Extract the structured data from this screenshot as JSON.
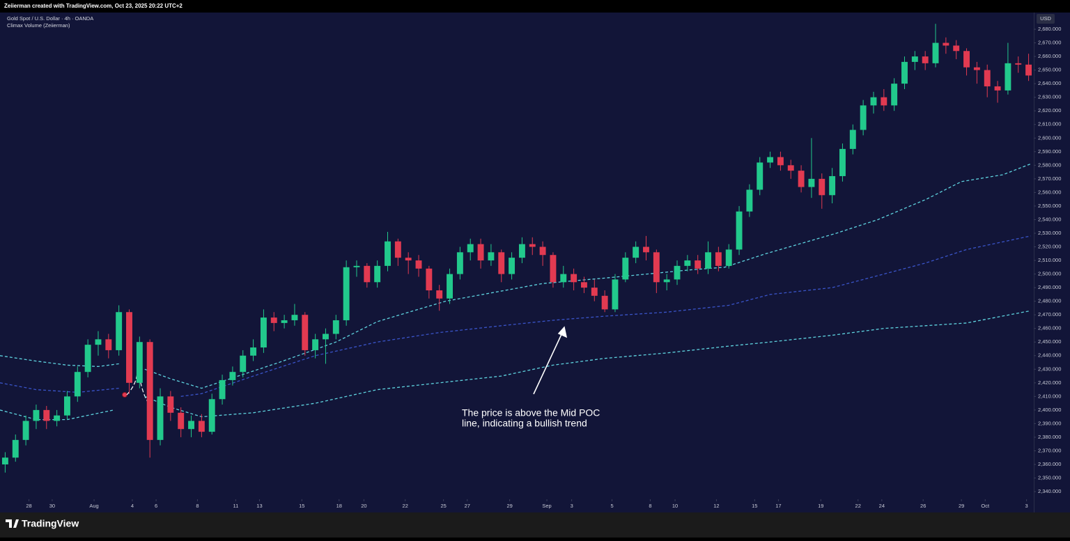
{
  "credit": "Zeiierman created with TradingView.com, Oct 23, 2025 20:22 UTC+2",
  "footer_brand": "TradingView",
  "chart_data": {
    "type": "candlestick",
    "title": "Gold Spot / U.S. Dollar · 4h · OANDA",
    "subtitle": "Climax Volume (Zeiierman)",
    "currency": "USD",
    "annotation": [
      "The price is above the Mid POC",
      "line, indicating a bullish trend"
    ],
    "up_color": "#22c98c",
    "down_color": "#e23a51",
    "grid": false,
    "xlim": [
      -0.5,
      99.5
    ],
    "ylim": [
      2334.4,
      2692.3
    ],
    "xticks": [
      {
        "value": 2.3,
        "label": "28"
      },
      {
        "value": 4.55,
        "label": "30"
      },
      {
        "value": 8.6,
        "label": "Aug"
      },
      {
        "value": 12.3,
        "label": "4"
      },
      {
        "value": 14.6,
        "label": "6"
      },
      {
        "value": 18.6,
        "label": "8"
      },
      {
        "value": 22.3,
        "label": "11"
      },
      {
        "value": 24.6,
        "label": "13"
      },
      {
        "value": 28.7,
        "label": "15"
      },
      {
        "value": 32.3,
        "label": "18"
      },
      {
        "value": 34.7,
        "label": "20"
      },
      {
        "value": 38.7,
        "label": "22"
      },
      {
        "value": 42.4,
        "label": "25"
      },
      {
        "value": 44.7,
        "label": "27"
      },
      {
        "value": 48.8,
        "label": "29"
      },
      {
        "value": 52.4,
        "label": "Sep"
      },
      {
        "value": 54.8,
        "label": "3"
      },
      {
        "value": 58.7,
        "label": "5"
      },
      {
        "value": 62.4,
        "label": "8"
      },
      {
        "value": 64.8,
        "label": "10"
      },
      {
        "value": 68.8,
        "label": "12"
      },
      {
        "value": 72.5,
        "label": "15"
      },
      {
        "value": 74.8,
        "label": "17"
      },
      {
        "value": 78.9,
        "label": "19"
      },
      {
        "value": 82.5,
        "label": "22"
      },
      {
        "value": 84.8,
        "label": "24"
      },
      {
        "value": 88.8,
        "label": "26"
      },
      {
        "value": 92.5,
        "label": "29"
      },
      {
        "value": 94.8,
        "label": "Oct"
      },
      {
        "value": 98.8,
        "label": "3"
      }
    ],
    "yticks": [
      {
        "value": 2340,
        "label": "2,340.000"
      },
      {
        "value": 2350,
        "label": "2,350.000"
      },
      {
        "value": 2360,
        "label": "2,360.000"
      },
      {
        "value": 2370,
        "label": "2,370.000"
      },
      {
        "value": 2380,
        "label": "2,380.000"
      },
      {
        "value": 2390,
        "label": "2,390.000"
      },
      {
        "value": 2400,
        "label": "2,400.000"
      },
      {
        "value": 2410,
        "label": "2,410.000"
      },
      {
        "value": 2420,
        "label": "2,420.000"
      },
      {
        "value": 2430,
        "label": "2,430.000"
      },
      {
        "value": 2440,
        "label": "2,440.000"
      },
      {
        "value": 2450,
        "label": "2,450.000"
      },
      {
        "value": 2460,
        "label": "2,460.000"
      },
      {
        "value": 2470,
        "label": "2,470.000"
      },
      {
        "value": 2480,
        "label": "2,480.000"
      },
      {
        "value": 2490,
        "label": "2,490.000"
      },
      {
        "value": 2500,
        "label": "2,500.000"
      },
      {
        "value": 2510,
        "label": "2,510.000"
      },
      {
        "value": 2520,
        "label": "2,520.000"
      },
      {
        "value": 2530,
        "label": "2,530.000"
      },
      {
        "value": 2540,
        "label": "2,540.000"
      },
      {
        "value": 2550,
        "label": "2,550.000"
      },
      {
        "value": 2560,
        "label": "2,560.000"
      },
      {
        "value": 2570,
        "label": "2,570.000"
      },
      {
        "value": 2580,
        "label": "2,580.000"
      },
      {
        "value": 2590,
        "label": "2,590.000"
      },
      {
        "value": 2600,
        "label": "2,600.000"
      },
      {
        "value": 2610,
        "label": "2,610.000"
      },
      {
        "value": 2620,
        "label": "2,620.000"
      },
      {
        "value": 2630,
        "label": "2,630.000"
      },
      {
        "value": 2640,
        "label": "2,640.000"
      },
      {
        "value": 2650,
        "label": "2,650.000"
      },
      {
        "value": 2660,
        "label": "2,660.000"
      },
      {
        "value": 2670,
        "label": "2,670.000"
      },
      {
        "value": 2680,
        "label": "2,680.000"
      }
    ],
    "open": [
      2360,
      2365,
      2378,
      2392,
      2400,
      2392,
      2396,
      2410,
      2428,
      2448,
      2452,
      2444,
      2472,
      2420,
      2450,
      2378,
      2410,
      2398,
      2386,
      2392,
      2384,
      2408,
      2422,
      2428,
      2440,
      2446,
      2468,
      2464,
      2466,
      2470,
      2444,
      2452,
      2456,
      2466,
      2505,
      2506,
      2494,
      2506,
      2524,
      2512,
      2510,
      2504,
      2488,
      2482,
      2500,
      2516,
      2522,
      2510,
      2516,
      2500,
      2512,
      2522,
      2520,
      2514,
      2494,
      2500,
      2494,
      2490,
      2484,
      2474,
      2496,
      2512,
      2520,
      2516,
      2494,
      2496,
      2506,
      2510,
      2504,
      2516,
      2506,
      2518,
      2546,
      2562,
      2582,
      2586,
      2580,
      2576,
      2564,
      2570,
      2558,
      2572,
      2592,
      2606,
      2624,
      2630,
      2624,
      2640,
      2656,
      2660,
      2655,
      2670,
      2668,
      2664,
      2652,
      2650,
      2638,
      2635,
      2655,
      2654
    ],
    "high": [
      2369,
      2382,
      2396,
      2404,
      2403,
      2400,
      2414,
      2432,
      2452,
      2458,
      2456,
      2477,
      2474,
      2454,
      2452,
      2416,
      2414,
      2402,
      2396,
      2397,
      2412,
      2426,
      2432,
      2444,
      2452,
      2474,
      2472,
      2470,
      2478,
      2472,
      2456,
      2460,
      2470,
      2510,
      2510,
      2508,
      2510,
      2531,
      2526,
      2516,
      2514,
      2506,
      2492,
      2504,
      2520,
      2526,
      2526,
      2522,
      2518,
      2516,
      2527,
      2527,
      2524,
      2516,
      2506,
      2504,
      2498,
      2496,
      2488,
      2500,
      2516,
      2524,
      2528,
      2518,
      2500,
      2510,
      2514,
      2514,
      2524,
      2520,
      2522,
      2550,
      2566,
      2586,
      2590,
      2590,
      2584,
      2580,
      2600,
      2574,
      2578,
      2596,
      2610,
      2628,
      2634,
      2636,
      2644,
      2660,
      2664,
      2664,
      2684,
      2674,
      2672,
      2666,
      2656,
      2654,
      2642,
      2670,
      2660,
      2662
    ],
    "low": [
      2354,
      2362,
      2374,
      2386,
      2386,
      2388,
      2393,
      2406,
      2424,
      2440,
      2438,
      2440,
      2412,
      2416,
      2365,
      2374,
      2392,
      2380,
      2380,
      2380,
      2382,
      2404,
      2418,
      2424,
      2436,
      2442,
      2458,
      2460,
      2462,
      2440,
      2438,
      2434,
      2452,
      2462,
      2498,
      2490,
      2490,
      2502,
      2506,
      2500,
      2498,
      2482,
      2473,
      2478,
      2496,
      2510,
      2504,
      2506,
      2494,
      2496,
      2508,
      2514,
      2506,
      2490,
      2490,
      2488,
      2486,
      2480,
      2472,
      2472,
      2494,
      2508,
      2510,
      2486,
      2488,
      2492,
      2502,
      2500,
      2500,
      2502,
      2504,
      2514,
      2542,
      2558,
      2578,
      2576,
      2570,
      2560,
      2556,
      2548,
      2552,
      2568,
      2588,
      2602,
      2618,
      2620,
      2620,
      2636,
      2650,
      2650,
      2652,
      2662,
      2658,
      2646,
      2640,
      2630,
      2626,
      2632,
      2648,
      2642
    ],
    "close": [
      2365,
      2378,
      2392,
      2400,
      2392,
      2396,
      2410,
      2428,
      2448,
      2452,
      2444,
      2472,
      2420,
      2450,
      2378,
      2410,
      2398,
      2386,
      2392,
      2384,
      2408,
      2422,
      2428,
      2440,
      2446,
      2468,
      2464,
      2466,
      2470,
      2444,
      2452,
      2456,
      2466,
      2505,
      2506,
      2494,
      2506,
      2524,
      2512,
      2510,
      2504,
      2488,
      2482,
      2500,
      2516,
      2522,
      2510,
      2516,
      2500,
      2512,
      2522,
      2520,
      2514,
      2494,
      2500,
      2494,
      2490,
      2484,
      2474,
      2496,
      2512,
      2520,
      2516,
      2494,
      2496,
      2506,
      2510,
      2504,
      2516,
      2506,
      2518,
      2546,
      2562,
      2582,
      2586,
      2580,
      2576,
      2564,
      2570,
      2558,
      2572,
      2592,
      2606,
      2624,
      2630,
      2624,
      2640,
      2656,
      2660,
      2655,
      2670,
      2668,
      2664,
      2652,
      2650,
      2638,
      2635,
      2655,
      2654,
      2646
    ],
    "lines": [
      {
        "color": "#5fd4e0",
        "x": [
          -0.5,
          3,
          6,
          9,
          11,
          11.5,
          13.5,
          16,
          19,
          26.5,
          32,
          36,
          42.6,
          52,
          58,
          66.2,
          69.6,
          73.6,
          80.4,
          84.4,
          89.1,
          92.5,
          96.5,
          99.2
        ],
        "values": [
          2440,
          2436,
          2433,
          2432,
          2434,
          null,
          2430,
          2423,
          2416,
          2435,
          2450,
          2465,
          2480,
          2493,
          2497,
          2503,
          2505,
          2515,
          2530,
          2540,
          2555,
          2568,
          2573,
          2581
        ]
      },
      {
        "color": "#3a54c9",
        "x": [
          -0.5,
          3,
          7,
          11,
          11.5,
          17,
          19,
          24,
          30,
          36,
          42,
          48,
          53,
          58,
          64,
          70,
          74,
          80,
          85,
          89,
          93,
          99.2
        ],
        "values": [
          2420,
          2415,
          2413,
          2416,
          null,
          2410,
          2412,
          2425,
          2440,
          2450,
          2457,
          2462,
          2466,
          2469,
          2472,
          2477,
          2485,
          2490,
          2500,
          2508,
          2518,
          2528
        ]
      },
      {
        "color": "#5fd4e0",
        "x": [
          -0.5,
          3,
          6,
          10.5,
          11,
          13.5,
          16,
          19,
          24,
          30,
          36,
          42,
          48,
          53,
          58,
          64,
          70,
          74,
          80,
          85,
          89,
          93,
          99.2
        ],
        "values": [
          2400,
          2393,
          2393,
          2400,
          null,
          2410,
          2402,
          2395,
          2398,
          2405,
          2415,
          2420,
          2425,
          2433,
          2438,
          2442,
          2447,
          2450,
          2455,
          2460,
          2462,
          2464,
          2473
        ]
      }
    ]
  }
}
